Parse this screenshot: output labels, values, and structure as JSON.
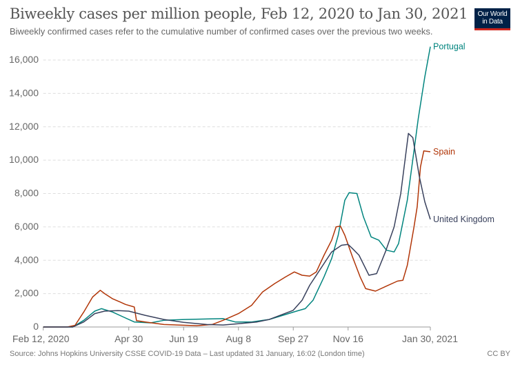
{
  "header": {
    "title": "Biweekly cases per million people, Feb 12, 2020 to Jan 30, 2021",
    "subtitle": "Biweekly confirmed cases refer to the cumulative number of confirmed cases over the previous two weeks.",
    "logo_text": "Our World in Data"
  },
  "footer": {
    "source": "Source: Johns Hopkins University CSSE COVID-19 Data – Last updated 31 January, 16:02 (London time)",
    "license": "CC BY"
  },
  "chart_data": {
    "type": "line",
    "title": "Biweekly cases per million people, Feb 12, 2020 to Jan 30, 2021",
    "xlim": [
      "2020-02-12",
      "2021-01-30"
    ],
    "ylim": [
      0,
      16000
    ],
    "grid": true,
    "x_ticks": [
      {
        "date": "2020-02-12",
        "label": "Feb 12, 2020"
      },
      {
        "date": "2020-04-30",
        "label": "Apr 30"
      },
      {
        "date": "2020-06-19",
        "label": "Jun 19"
      },
      {
        "date": "2020-08-08",
        "label": "Aug 8"
      },
      {
        "date": "2020-09-27",
        "label": "Sep 27"
      },
      {
        "date": "2020-11-16",
        "label": "Nov 16"
      },
      {
        "date": "2021-01-30",
        "label": "Jan 30, 2021"
      }
    ],
    "y_ticks": [
      {
        "value": 0,
        "label": "0"
      },
      {
        "value": 2000,
        "label": "2,000"
      },
      {
        "value": 4000,
        "label": "4,000"
      },
      {
        "value": 6000,
        "label": "6,000"
      },
      {
        "value": 8000,
        "label": "8,000"
      },
      {
        "value": 10000,
        "label": "10,000"
      },
      {
        "value": 12000,
        "label": "12,000"
      },
      {
        "value": 14000,
        "label": "14,000"
      },
      {
        "value": 16000,
        "label": "16,000"
      }
    ],
    "series": [
      {
        "name": "Portugal",
        "color": "#00847e",
        "points": [
          [
            "2020-02-12",
            0
          ],
          [
            "2020-03-10",
            0
          ],
          [
            "2020-03-20",
            400
          ],
          [
            "2020-03-30",
            950
          ],
          [
            "2020-04-05",
            1100
          ],
          [
            "2020-04-15",
            900
          ],
          [
            "2020-04-25",
            600
          ],
          [
            "2020-05-05",
            300
          ],
          [
            "2020-05-20",
            250
          ],
          [
            "2020-06-01",
            400
          ],
          [
            "2020-06-20",
            450
          ],
          [
            "2020-07-10",
            480
          ],
          [
            "2020-07-25",
            500
          ],
          [
            "2020-08-05",
            300
          ],
          [
            "2020-08-20",
            300
          ],
          [
            "2020-09-05",
            450
          ],
          [
            "2020-09-20",
            750
          ],
          [
            "2020-09-30",
            950
          ],
          [
            "2020-10-08",
            1100
          ],
          [
            "2020-10-15",
            1600
          ],
          [
            "2020-10-25",
            3000
          ],
          [
            "2020-11-01",
            4100
          ],
          [
            "2020-11-07",
            5500
          ],
          [
            "2020-11-13",
            7600
          ],
          [
            "2020-11-17",
            8050
          ],
          [
            "2020-11-24",
            8000
          ],
          [
            "2020-11-30",
            6600
          ],
          [
            "2020-12-07",
            5400
          ],
          [
            "2020-12-14",
            5200
          ],
          [
            "2020-12-21",
            4600
          ],
          [
            "2020-12-28",
            4500
          ],
          [
            "2021-01-01",
            5000
          ],
          [
            "2021-01-09",
            7600
          ],
          [
            "2021-01-15",
            10500
          ],
          [
            "2021-01-19",
            12500
          ],
          [
            "2021-01-25",
            15000
          ],
          [
            "2021-01-30",
            16800
          ]
        ]
      },
      {
        "name": "Spain",
        "color": "#b13507",
        "points": [
          [
            "2020-02-12",
            0
          ],
          [
            "2020-03-05",
            0
          ],
          [
            "2020-03-12",
            100
          ],
          [
            "2020-03-20",
            900
          ],
          [
            "2020-03-28",
            1800
          ],
          [
            "2020-04-04",
            2200
          ],
          [
            "2020-04-08",
            2000
          ],
          [
            "2020-04-15",
            1700
          ],
          [
            "2020-04-22",
            1500
          ],
          [
            "2020-04-27",
            1350
          ],
          [
            "2020-05-05",
            1200
          ],
          [
            "2020-05-07",
            380
          ],
          [
            "2020-05-15",
            300
          ],
          [
            "2020-06-01",
            150
          ],
          [
            "2020-07-01",
            80
          ],
          [
            "2020-07-15",
            150
          ],
          [
            "2020-07-25",
            400
          ],
          [
            "2020-08-08",
            800
          ],
          [
            "2020-08-20",
            1300
          ],
          [
            "2020-08-30",
            2100
          ],
          [
            "2020-09-10",
            2600
          ],
          [
            "2020-09-20",
            3000
          ],
          [
            "2020-09-28",
            3300
          ],
          [
            "2020-10-05",
            3100
          ],
          [
            "2020-10-12",
            3050
          ],
          [
            "2020-10-18",
            3300
          ],
          [
            "2020-10-25",
            4300
          ],
          [
            "2020-11-01",
            5200
          ],
          [
            "2020-11-05",
            6000
          ],
          [
            "2020-11-09",
            6050
          ],
          [
            "2020-11-13",
            5500
          ],
          [
            "2020-11-20",
            4200
          ],
          [
            "2020-11-27",
            3000
          ],
          [
            "2020-12-02",
            2300
          ],
          [
            "2020-12-11",
            2150
          ],
          [
            "2020-12-21",
            2450
          ],
          [
            "2020-12-31",
            2750
          ],
          [
            "2021-01-05",
            2800
          ],
          [
            "2021-01-09",
            3700
          ],
          [
            "2021-01-15",
            5950
          ],
          [
            "2021-01-18",
            7200
          ],
          [
            "2021-01-21",
            9600
          ],
          [
            "2021-01-24",
            10550
          ],
          [
            "2021-01-30",
            10500
          ]
        ]
      },
      {
        "name": "United Kingdom",
        "color": "#38405c",
        "points": [
          [
            "2020-02-12",
            0
          ],
          [
            "2020-03-10",
            0
          ],
          [
            "2020-03-20",
            300
          ],
          [
            "2020-03-30",
            800
          ],
          [
            "2020-04-08",
            950
          ],
          [
            "2020-04-20",
            980
          ],
          [
            "2020-04-30",
            950
          ],
          [
            "2020-05-15",
            700
          ],
          [
            "2020-06-01",
            450
          ],
          [
            "2020-06-19",
            280
          ],
          [
            "2020-07-10",
            150
          ],
          [
            "2020-07-25",
            120
          ],
          [
            "2020-08-08",
            200
          ],
          [
            "2020-08-25",
            300
          ],
          [
            "2020-09-05",
            450
          ],
          [
            "2020-09-15",
            700
          ],
          [
            "2020-09-27",
            1000
          ],
          [
            "2020-10-05",
            1600
          ],
          [
            "2020-10-12",
            2500
          ],
          [
            "2020-10-20",
            3300
          ],
          [
            "2020-11-01",
            4500
          ],
          [
            "2020-11-10",
            4900
          ],
          [
            "2020-11-16",
            4950
          ],
          [
            "2020-11-20",
            4700
          ],
          [
            "2020-11-26",
            4300
          ],
          [
            "2020-12-05",
            3100
          ],
          [
            "2020-12-12",
            3200
          ],
          [
            "2020-12-20",
            4500
          ],
          [
            "2020-12-28",
            6000
          ],
          [
            "2021-01-03",
            8000
          ],
          [
            "2021-01-10",
            11600
          ],
          [
            "2021-01-14",
            11350
          ],
          [
            "2021-01-20",
            9000
          ],
          [
            "2021-01-25",
            7500
          ],
          [
            "2021-01-30",
            6450
          ]
        ]
      }
    ]
  }
}
